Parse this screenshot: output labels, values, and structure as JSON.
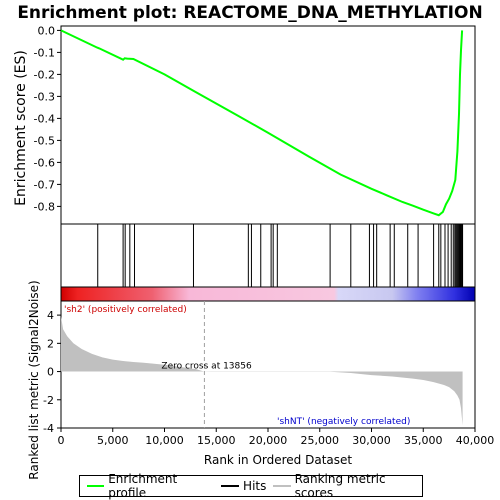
{
  "chart_data": {
    "type": "line",
    "title": "Enrichment plot: REACTOME_DNA_METHYLATION",
    "es_panel": {
      "ylabel": "Enrichment score (ES)",
      "ylim": [
        -0.88,
        0.02
      ],
      "yticks": [
        0.0,
        -0.1,
        -0.2,
        -0.3,
        -0.4,
        -0.5,
        -0.6,
        -0.7,
        -0.8
      ],
      "ytick_labels": [
        "0.0",
        "-0.1",
        "-0.2",
        "-0.3",
        "-0.4",
        "-0.5",
        "-0.6",
        "-0.7",
        "-0.8"
      ],
      "series": [
        {
          "name": "Enrichment profile",
          "color": "#00ff00",
          "x": [
            0,
            3500,
            3700,
            6000,
            6150,
            6400,
            7000,
            10000,
            13000,
            17000,
            20000,
            24000,
            27000,
            30000,
            31500,
            33000,
            34000,
            35000,
            36000,
            36500,
            36900,
            37200,
            37500,
            37800,
            38100,
            38300,
            38450,
            38550,
            38650,
            38750
          ],
          "y": [
            0.0,
            -0.078,
            -0.082,
            -0.133,
            -0.127,
            -0.128,
            -0.13,
            -0.2,
            -0.28,
            -0.385,
            -0.465,
            -0.575,
            -0.655,
            -0.72,
            -0.75,
            -0.78,
            -0.797,
            -0.815,
            -0.832,
            -0.84,
            -0.825,
            -0.79,
            -0.765,
            -0.73,
            -0.68,
            -0.55,
            -0.38,
            -0.2,
            -0.09,
            0.0
          ]
        }
      ]
    },
    "hits_panel": {
      "hit_positions": [
        3550,
        6000,
        6200,
        6650,
        7100,
        12800,
        18100,
        18400,
        19300,
        20300,
        20500,
        20900,
        26000,
        28000,
        29800,
        30200,
        30500,
        31800,
        32200,
        33500,
        34500,
        36000,
        36500,
        36700,
        37100,
        37400,
        37700,
        37900,
        38050,
        38150,
        38250,
        38350,
        38450,
        38500,
        38600,
        38680,
        38750,
        38800
      ]
    },
    "metric_panel": {
      "ylabel": "Ranked list metric (Signal2Noise)",
      "xlabel": "Rank in Ordered Dataset",
      "ylim": [
        -4,
        5
      ],
      "yticks": [
        4,
        2,
        0,
        -2,
        -4
      ],
      "ytick_labels": [
        "4",
        "2",
        "0",
        "-2",
        "-4"
      ],
      "xlim": [
        0,
        40000
      ],
      "xticks": [
        0,
        5000,
        10000,
        15000,
        20000,
        25000,
        30000,
        35000,
        40000
      ],
      "xtick_labels": [
        "0",
        "5,000",
        "10,000",
        "15,000",
        "20,000",
        "25,000",
        "30,000",
        "35,000",
        "40,000"
      ],
      "metric_x": [
        0,
        200,
        600,
        1200,
        2000,
        3000,
        4000,
        5000,
        6000,
        7000,
        8000,
        9000,
        10000,
        11000,
        12000,
        12700,
        13000,
        13856,
        14500,
        16000,
        18000,
        20000,
        22000,
        24000,
        26000,
        28000,
        30000,
        32000,
        34000,
        35000,
        36000,
        37000,
        37500,
        38000,
        38300,
        38500,
        38650,
        38800
      ],
      "metric_y": [
        3.9,
        3.0,
        2.5,
        2.0,
        1.6,
        1.25,
        1.0,
        0.85,
        0.75,
        0.68,
        0.62,
        0.55,
        0.48,
        0.38,
        0.28,
        0.2,
        0.18,
        0.0,
        -0.02,
        -0.02,
        -0.02,
        -0.02,
        -0.02,
        -0.02,
        -0.02,
        -0.1,
        -0.25,
        -0.35,
        -0.5,
        -0.6,
        -0.75,
        -0.95,
        -1.1,
        -1.4,
        -1.7,
        -2.0,
        -2.6,
        -3.8
      ],
      "zero_cross_label": "Zero cross at 13856",
      "zero_cross": 13856,
      "pos_label": "'sh2' (positively correlated)",
      "neg_label": "'shNT' (negatively correlated)"
    },
    "legend": {
      "placement": "bottom",
      "entries": [
        {
          "label": "Enrichment profile",
          "color": "#00ff00"
        },
        {
          "label": "Hits",
          "color": "#000000"
        },
        {
          "label": "Ranking metric scores",
          "color": "#c0c0c0"
        }
      ]
    }
  }
}
